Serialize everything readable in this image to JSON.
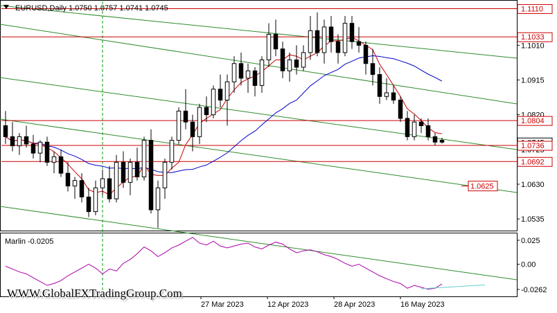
{
  "chart_title": "EURUSD,Daily  1.0750  1.0757  1.0741  1.0745",
  "indicator_label": "Marlin -0.0205",
  "watermark": "WWW.GlobalFXTradingGroup.Com",
  "colors": {
    "bull": "#ffffff",
    "bear": "#000000",
    "level_line": "#cc0000",
    "channel": "#2e8b2e",
    "ma_blue": "#0000cc",
    "ma_red": "#cc0000",
    "oscillator": "#aa00aa",
    "osc_trend": "#66cccc",
    "vline": "#009900"
  },
  "chart_data": {
    "type": "candlestick",
    "symbol": "EURUSD",
    "timeframe": "Daily",
    "ohlc_current": {
      "open": 1.075,
      "high": 1.0757,
      "low": 1.0741,
      "close": 1.0745
    },
    "price_axis_ticks": [
      "1.1010",
      "1.0915",
      "1.0820",
      "1.0725",
      "1.0630",
      "1.0535"
    ],
    "price_range": [
      1.0505,
      1.113
    ],
    "levels": [
      {
        "label": "1.1110",
        "value": 1.111
      },
      {
        "label": "1.1033",
        "value": 1.1033
      },
      {
        "label": "1.0804",
        "value": 1.0804
      },
      {
        "label": "1.0745",
        "value": 1.0745
      },
      {
        "label": "1.0736",
        "value": 1.0736
      },
      {
        "label": "1.0692",
        "value": 1.0692
      }
    ],
    "target_label": {
      "label": "1.0625",
      "value": 1.0625
    },
    "date_labels": [
      "27 Mar 2023",
      "12 Apr 2023",
      "28 Apr 2023",
      "16 May 2023"
    ],
    "indicator": {
      "name": "Marlin",
      "value": -0.0205,
      "axis_ticks": [
        "0.025",
        "0.00",
        "-0.0262"
      ],
      "range": [
        -0.032,
        0.03
      ]
    },
    "candles": [
      [
        1.079,
        1.083,
        1.074,
        1.076
      ],
      [
        1.076,
        1.08,
        1.072,
        1.0735
      ],
      [
        1.0735,
        1.077,
        1.071,
        1.076
      ],
      [
        1.076,
        1.079,
        1.073,
        1.074
      ],
      [
        1.074,
        1.0765,
        1.07,
        1.0715
      ],
      [
        1.0715,
        1.075,
        1.069,
        1.0745
      ],
      [
        1.0745,
        1.076,
        1.068,
        1.069
      ],
      [
        1.069,
        1.072,
        1.066,
        1.0705
      ],
      [
        1.0705,
        1.0725,
        1.065,
        1.066
      ],
      [
        1.066,
        1.069,
        1.061,
        1.0625
      ],
      [
        1.0625,
        1.065,
        1.059,
        1.064
      ],
      [
        1.064,
        1.066,
        1.058,
        1.0595
      ],
      [
        1.0595,
        1.062,
        1.054,
        1.0555
      ],
      [
        1.0555,
        1.064,
        1.0545,
        1.062
      ],
      [
        1.062,
        1.067,
        1.06,
        1.0645
      ],
      [
        1.0645,
        1.068,
        1.058,
        1.059
      ],
      [
        1.059,
        1.071,
        1.058,
        1.069
      ],
      [
        1.069,
        1.072,
        1.062,
        1.0635
      ],
      [
        1.0635,
        1.07,
        1.06,
        1.069
      ],
      [
        1.069,
        1.073,
        1.064,
        1.065
      ],
      [
        1.065,
        1.076,
        1.064,
        1.075
      ],
      [
        1.075,
        1.078,
        1.055,
        1.056
      ],
      [
        1.056,
        1.064,
        1.051,
        1.062
      ],
      [
        1.062,
        1.07,
        1.059,
        1.069
      ],
      [
        1.069,
        1.076,
        1.067,
        1.075
      ],
      [
        1.075,
        1.084,
        1.074,
        1.083
      ],
      [
        1.083,
        1.089,
        1.078,
        1.08
      ],
      [
        1.08,
        1.082,
        1.072,
        1.076
      ],
      [
        1.076,
        1.085,
        1.074,
        1.084
      ],
      [
        1.084,
        1.087,
        1.08,
        1.082
      ],
      [
        1.082,
        1.09,
        1.081,
        1.089
      ],
      [
        1.089,
        1.093,
        1.084,
        1.086
      ],
      [
        1.086,
        1.093,
        1.079,
        1.091
      ],
      [
        1.091,
        1.098,
        1.088,
        1.096
      ],
      [
        1.096,
        1.099,
        1.09,
        1.092
      ],
      [
        1.092,
        1.096,
        1.088,
        1.094
      ],
      [
        1.094,
        1.095,
        1.087,
        1.09
      ],
      [
        1.09,
        1.098,
        1.088,
        1.097
      ],
      [
        1.097,
        1.107,
        1.095,
        1.104
      ],
      [
        1.104,
        1.108,
        1.098,
        1.1
      ],
      [
        1.1,
        1.102,
        1.092,
        1.094
      ],
      [
        1.094,
        1.099,
        1.091,
        1.097
      ],
      [
        1.097,
        1.101,
        1.093,
        1.095
      ],
      [
        1.095,
        1.101,
        1.094,
        1.099
      ],
      [
        1.099,
        1.109,
        1.097,
        1.105
      ],
      [
        1.105,
        1.11,
        1.098,
        1.099
      ],
      [
        1.099,
        1.108,
        1.096,
        1.106
      ],
      [
        1.106,
        1.109,
        1.099,
        1.102
      ],
      [
        1.102,
        1.104,
        1.096,
        1.099
      ],
      [
        1.099,
        1.109,
        1.098,
        1.107
      ],
      [
        1.107,
        1.109,
        1.1,
        1.102
      ],
      [
        1.102,
        1.106,
        1.099,
        1.101
      ],
      [
        1.101,
        1.102,
        1.093,
        1.096
      ],
      [
        1.096,
        1.1,
        1.09,
        1.093
      ],
      [
        1.093,
        1.095,
        1.085,
        1.087
      ],
      [
        1.087,
        1.092,
        1.086,
        1.088
      ],
      [
        1.088,
        1.09,
        1.085,
        1.086
      ],
      [
        1.086,
        1.087,
        1.08,
        1.081
      ],
      [
        1.081,
        1.083,
        1.075,
        1.076
      ],
      [
        1.076,
        1.082,
        1.075,
        1.08
      ],
      [
        1.08,
        1.081,
        1.077,
        1.079
      ],
      [
        1.079,
        1.081,
        1.075,
        1.076
      ],
      [
        1.076,
        1.077,
        1.0735,
        1.0745
      ],
      [
        1.075,
        1.0757,
        1.0741,
        1.0745
      ]
    ],
    "oscillator_values": [
      -0.002,
      -0.005,
      -0.008,
      -0.01,
      -0.014,
      -0.018,
      -0.022,
      -0.02,
      -0.017,
      -0.012,
      -0.008,
      -0.004,
      0.0,
      -0.004,
      -0.01,
      -0.005,
      -0.007,
      0.001,
      0.005,
      0.011,
      0.018,
      0.014,
      0.008,
      0.012,
      0.017,
      0.02,
      0.024,
      0.028,
      0.022,
      0.02,
      0.024,
      0.019,
      0.017,
      0.019,
      0.021,
      0.022,
      0.018,
      0.016,
      0.02,
      0.023,
      0.021,
      0.016,
      0.012,
      0.014,
      0.015,
      0.013,
      0.01,
      0.008,
      0.005,
      0.001,
      -0.002,
      0.0,
      -0.004,
      -0.008,
      -0.012,
      -0.015,
      -0.018,
      -0.02,
      -0.025,
      -0.022,
      -0.024,
      -0.026,
      -0.025,
      -0.0205
    ]
  }
}
